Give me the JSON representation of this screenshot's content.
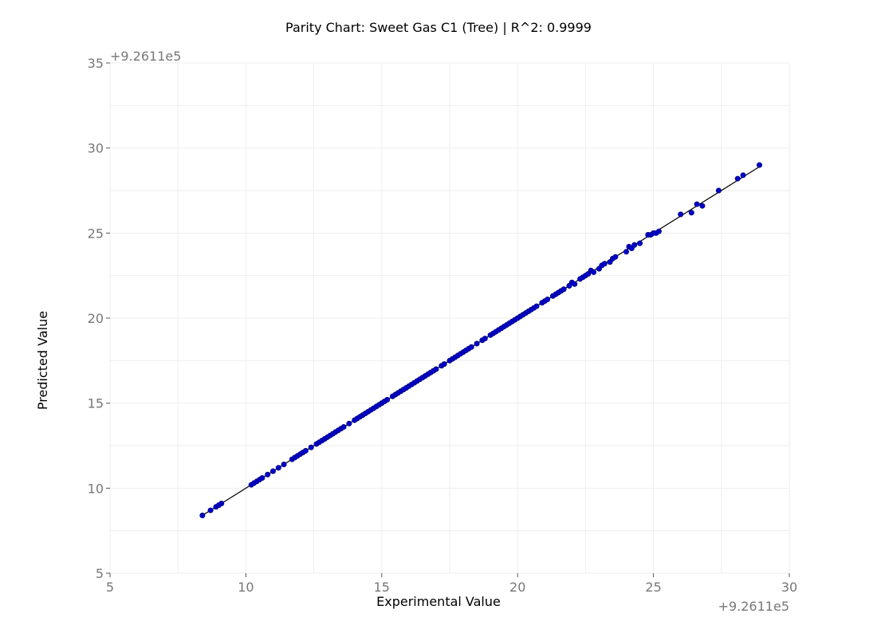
{
  "chart_data": {
    "type": "scatter",
    "title": "Parity Chart: Sweet Gas C1 (Tree) | R^2: 0.9999",
    "xlabel": "Experimental Value",
    "ylabel": "Predicted Value",
    "x_offset_label": "+9.2611e5",
    "y_offset_label": "+9.2611e5",
    "xlim": [
      5,
      30
    ],
    "ylim": [
      5,
      35
    ],
    "x_ticks": [
      "5",
      "10",
      "15",
      "20",
      "25",
      "30"
    ],
    "y_ticks": [
      "5",
      "10",
      "15",
      "20",
      "25",
      "30",
      "35"
    ],
    "grid": true,
    "parity_line": {
      "from": [
        8.4,
        8.4
      ],
      "to": [
        28.9,
        28.9
      ],
      "color": "#000000"
    },
    "series": [
      {
        "color": "#0000cc",
        "x": [
          8.4,
          8.7,
          8.9,
          9.0,
          9.1,
          10.2,
          10.3,
          10.4,
          10.5,
          10.6,
          10.8,
          11.0,
          11.2,
          11.4,
          11.7,
          11.8,
          11.9,
          12.0,
          12.1,
          12.2,
          12.4,
          12.6,
          12.7,
          12.8,
          12.9,
          13.0,
          13.1,
          13.2,
          13.3,
          13.4,
          13.5,
          13.6,
          13.8,
          14.0,
          14.1,
          14.2,
          14.3,
          14.4,
          14.5,
          14.6,
          14.7,
          14.8,
          14.9,
          15.0,
          15.1,
          15.2,
          15.4,
          15.5,
          15.6,
          15.7,
          15.8,
          15.9,
          16.0,
          16.1,
          16.2,
          16.3,
          16.4,
          16.5,
          16.6,
          16.7,
          16.8,
          16.9,
          17.0,
          17.2,
          17.3,
          17.5,
          17.6,
          17.7,
          17.8,
          17.9,
          18.0,
          18.1,
          18.2,
          18.3,
          18.5,
          18.7,
          18.8,
          19.0,
          19.1,
          19.2,
          19.3,
          19.4,
          19.5,
          19.6,
          19.7,
          19.8,
          19.9,
          20.0,
          20.1,
          20.2,
          20.3,
          20.4,
          20.5,
          20.6,
          20.7,
          20.9,
          21.0,
          21.1,
          21.3,
          21.4,
          21.5,
          21.6,
          21.7,
          21.9,
          22.0,
          22.1,
          22.3,
          22.4,
          22.5,
          22.6,
          22.7,
          22.8,
          23.0,
          23.1,
          23.2,
          23.4,
          23.5,
          23.6,
          24.0,
          24.1,
          24.2,
          24.3,
          24.5,
          24.8,
          24.9,
          25.0,
          25.1,
          25.2,
          26.0,
          26.4,
          26.6,
          26.8,
          27.4,
          28.1,
          28.3,
          28.9
        ],
        "y": [
          8.4,
          8.7,
          8.9,
          9.0,
          9.1,
          10.2,
          10.3,
          10.4,
          10.5,
          10.6,
          10.8,
          11.0,
          11.2,
          11.4,
          11.7,
          11.8,
          11.9,
          12.0,
          12.1,
          12.2,
          12.4,
          12.6,
          12.7,
          12.8,
          12.9,
          13.0,
          13.1,
          13.2,
          13.3,
          13.4,
          13.5,
          13.6,
          13.8,
          14.0,
          14.1,
          14.2,
          14.3,
          14.4,
          14.5,
          14.6,
          14.7,
          14.8,
          14.9,
          15.0,
          15.1,
          15.2,
          15.4,
          15.5,
          15.6,
          15.7,
          15.8,
          15.9,
          16.0,
          16.1,
          16.2,
          16.3,
          16.4,
          16.5,
          16.6,
          16.7,
          16.8,
          16.9,
          17.0,
          17.2,
          17.3,
          17.5,
          17.6,
          17.7,
          17.8,
          17.9,
          18.0,
          18.1,
          18.2,
          18.3,
          18.5,
          18.7,
          18.8,
          19.0,
          19.1,
          19.2,
          19.3,
          19.4,
          19.5,
          19.6,
          19.7,
          19.8,
          19.9,
          20.0,
          20.1,
          20.2,
          20.3,
          20.4,
          20.5,
          20.6,
          20.7,
          20.9,
          21.0,
          21.1,
          21.3,
          21.4,
          21.5,
          21.6,
          21.7,
          21.9,
          22.1,
          22.0,
          22.3,
          22.4,
          22.5,
          22.6,
          22.8,
          22.7,
          22.9,
          23.1,
          23.2,
          23.3,
          23.5,
          23.6,
          23.9,
          24.2,
          24.1,
          24.3,
          24.4,
          24.9,
          24.9,
          25.0,
          25.0,
          25.1,
          26.1,
          26.2,
          26.7,
          26.6,
          27.5,
          28.2,
          28.4,
          29.0
        ]
      }
    ]
  }
}
